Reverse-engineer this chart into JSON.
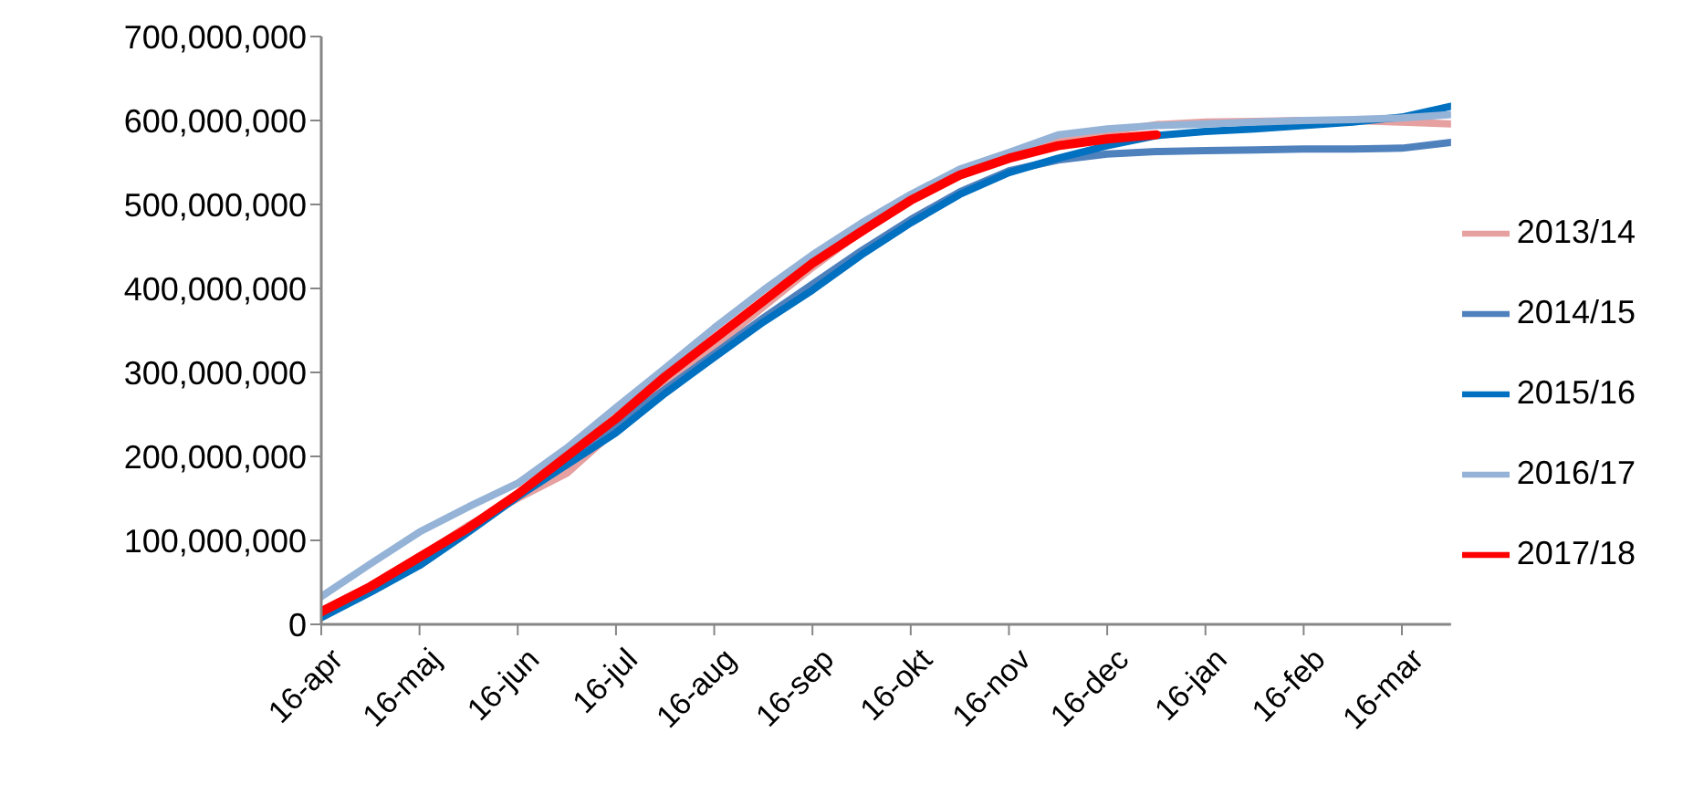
{
  "chart_data": {
    "type": "line",
    "categories": [
      "16-apr",
      null,
      "16-maj",
      null,
      "16-jun",
      null,
      "16-jul",
      null,
      "16-aug",
      null,
      "16-sep",
      null,
      "16-okt",
      null,
      "16-nov",
      null,
      "16-dec",
      null,
      "16-jan",
      null,
      "16-feb",
      null,
      "16-mar",
      null
    ],
    "ylim": [
      0,
      700000000
    ],
    "yticks": [
      {
        "value": 0,
        "label": "0"
      },
      {
        "value": 100000000,
        "label": "100,000,000"
      },
      {
        "value": 200000000,
        "label": "200,000,000"
      },
      {
        "value": 300000000,
        "label": "300,000,000"
      },
      {
        "value": 400000000,
        "label": "400,000,000"
      },
      {
        "value": 500000000,
        "label": "500,000,000"
      },
      {
        "value": 600000000,
        "label": "600,000,000"
      },
      {
        "value": 700000000,
        "label": "700,000,000"
      }
    ],
    "grid": false,
    "legend": "right",
    "marker": "none",
    "line_style": "solid",
    "series": [
      {
        "name": "2013/14",
        "color": "#e6a0a0",
        "values": [
          12000000,
          42000000,
          80000000,
          118000000,
          150000000,
          180000000,
          232000000,
          283000000,
          330000000,
          378000000,
          425000000,
          468000000,
          505000000,
          535000000,
          555000000,
          575000000,
          587000000,
          595000000,
          598000000,
          599000000,
          600000000,
          600000000,
          598000000,
          596000000
        ]
      },
      {
        "name": "2014/15",
        "color": "#4f81bd",
        "values": [
          10000000,
          40000000,
          78000000,
          115000000,
          152000000,
          195000000,
          238000000,
          280000000,
          322000000,
          365000000,
          405000000,
          445000000,
          482000000,
          515000000,
          540000000,
          553000000,
          560000000,
          563000000,
          564000000,
          565000000,
          566000000,
          566000000,
          567000000,
          574000000
        ]
      },
      {
        "name": "2015/16",
        "color": "#0070c0",
        "values": [
          8000000,
          38000000,
          70000000,
          110000000,
          152000000,
          190000000,
          228000000,
          275000000,
          318000000,
          360000000,
          398000000,
          440000000,
          478000000,
          512000000,
          538000000,
          555000000,
          570000000,
          582000000,
          587000000,
          590000000,
          594000000,
          598000000,
          604000000,
          617000000
        ]
      },
      {
        "name": "2016/17",
        "color": "#95b3d7",
        "values": [
          33000000,
          72000000,
          110000000,
          140000000,
          168000000,
          210000000,
          258000000,
          305000000,
          353000000,
          398000000,
          440000000,
          478000000,
          512000000,
          542000000,
          562000000,
          583000000,
          590000000,
          594000000,
          596000000,
          598000000,
          600000000,
          601000000,
          603000000,
          607000000
        ]
      },
      {
        "name": "2017/18",
        "color": "#ff0000",
        "values": [
          15000000,
          45000000,
          80000000,
          115000000,
          155000000,
          200000000,
          245000000,
          295000000,
          340000000,
          385000000,
          430000000,
          468000000,
          505000000,
          535000000,
          555000000,
          570000000,
          578000000,
          583000000,
          null,
          null,
          null,
          null,
          null,
          null
        ]
      }
    ]
  }
}
